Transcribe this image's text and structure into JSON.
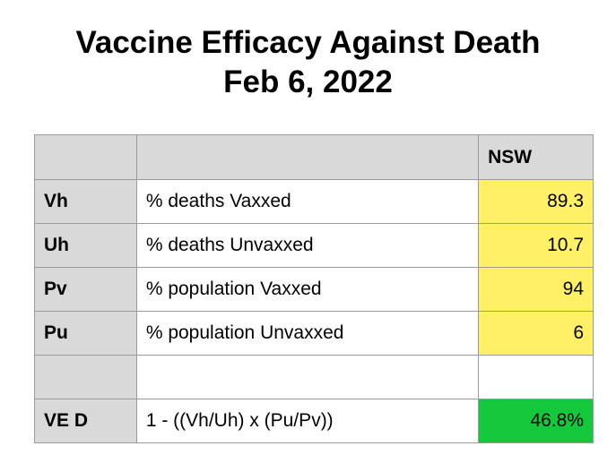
{
  "title": {
    "line1": "Vaccine Efficacy Against Death",
    "line2": "Feb 6, 2022"
  },
  "table": {
    "header": {
      "code": "",
      "description": "",
      "region": "NSW"
    },
    "rows": [
      {
        "code": "Vh",
        "description": "% deaths Vaxxed",
        "value": "89.3"
      },
      {
        "code": "Uh",
        "description": "% deaths Unvaxxed",
        "value": "10.7"
      },
      {
        "code": "Pv",
        "description": "% population Vaxxed",
        "value": "94"
      },
      {
        "code": "Pu",
        "description": "% population Unvaxxed",
        "value": "6"
      },
      {
        "code": "",
        "description": "",
        "value": ""
      },
      {
        "code": "VE D",
        "description": "1 - ((Vh/Uh) x (Pu/Pv))",
        "value": "46.8%"
      }
    ]
  },
  "colors": {
    "header_bg": "#d9d9d9",
    "value_bg": "#fff066",
    "result_bg": "#14c83c",
    "border": "#9a9a9a"
  }
}
